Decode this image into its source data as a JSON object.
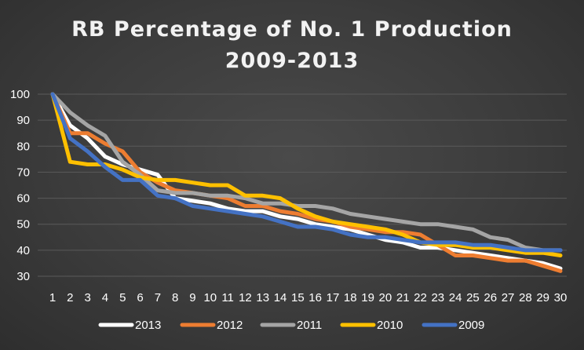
{
  "chart_data": {
    "type": "line",
    "title": [
      "RB Percentage of No. 1 Production",
      "2009-2013"
    ],
    "xlabel": "",
    "ylabel": "",
    "x": [
      1,
      2,
      3,
      4,
      5,
      6,
      7,
      8,
      9,
      10,
      11,
      12,
      13,
      14,
      15,
      16,
      17,
      18,
      19,
      20,
      21,
      22,
      23,
      24,
      25,
      26,
      27,
      28,
      29,
      30
    ],
    "y_ticks": [
      30,
      40,
      50,
      60,
      70,
      80,
      90,
      100
    ],
    "ylim": [
      30,
      100
    ],
    "grid": true,
    "legend_position": "bottom",
    "series": [
      {
        "name": "2013",
        "color": "#ffffff",
        "values": [
          100,
          88,
          83,
          76,
          73,
          71,
          69,
          60,
          59,
          58,
          56,
          55,
          55,
          53,
          52,
          50,
          49,
          48,
          46,
          44,
          43,
          41,
          41,
          40,
          39,
          38,
          37,
          36,
          35,
          33
        ]
      },
      {
        "name": "2012",
        "color": "#ed7d31",
        "values": [
          100,
          85,
          85,
          81,
          78,
          70,
          66,
          63,
          62,
          61,
          60,
          57,
          57,
          55,
          54,
          52,
          51,
          49,
          48,
          47,
          47,
          46,
          42,
          38,
          38,
          37,
          36,
          36,
          34,
          32
        ]
      },
      {
        "name": "2011",
        "color": "#a5a5a5",
        "values": [
          100,
          93,
          88,
          84,
          74,
          69,
          63,
          62,
          62,
          61,
          61,
          60,
          58,
          58,
          57,
          57,
          56,
          54,
          53,
          52,
          51,
          50,
          50,
          49,
          48,
          45,
          44,
          41,
          40,
          40
        ]
      },
      {
        "name": "2010",
        "color": "#ffc000",
        "values": [
          100,
          74,
          73,
          73,
          71,
          68,
          67,
          67,
          66,
          65,
          65,
          61,
          61,
          60,
          56,
          53,
          51,
          50,
          49,
          48,
          46,
          43,
          42,
          42,
          41,
          41,
          40,
          39,
          39,
          38
        ]
      },
      {
        "name": "2009",
        "color": "#4472c4",
        "values": [
          100,
          83,
          78,
          72,
          67,
          67,
          61,
          60,
          57,
          56,
          55,
          54,
          53,
          51,
          49,
          49,
          48,
          46,
          45,
          45,
          44,
          43,
          43,
          43,
          42,
          42,
          41,
          40,
          40,
          40
        ]
      }
    ]
  }
}
